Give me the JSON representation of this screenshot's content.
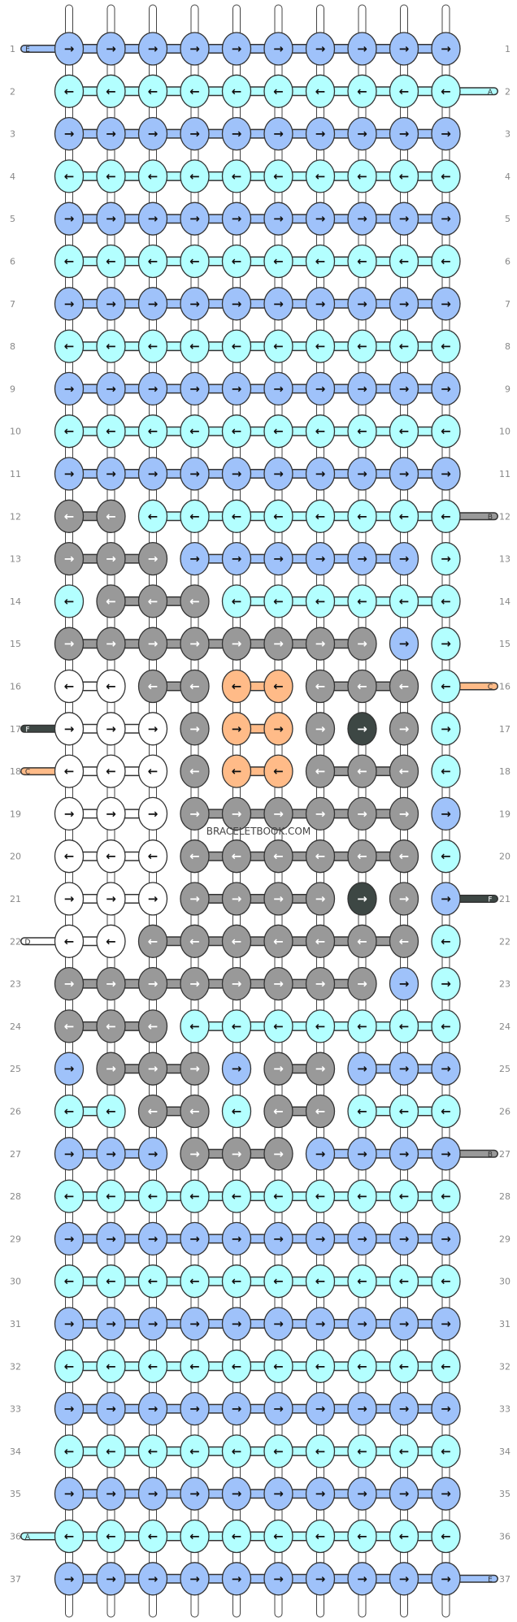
{
  "watermark": "BRACELETBOOK.COM",
  "colors": {
    "A": "#b3ffff",
    "B": "#999999",
    "C": "#ffbb88",
    "D": "#ffffff",
    "E": "#9fc2fa",
    "F": "#3d4744"
  },
  "start_strings": [
    {
      "row": 1,
      "side": "left",
      "letter": "E",
      "color": "E"
    },
    {
      "row": 2,
      "side": "right",
      "letter": "A",
      "color": "A"
    },
    {
      "row": 12,
      "side": "right",
      "letter": "B",
      "color": "B"
    },
    {
      "row": 16,
      "side": "right",
      "letter": "C",
      "color": "C"
    },
    {
      "row": 17,
      "side": "left",
      "letter": "F",
      "color": "F"
    },
    {
      "row": 18,
      "side": "left",
      "letter": "C",
      "color": "C"
    },
    {
      "row": 21,
      "side": "right",
      "letter": "F",
      "color": "F"
    },
    {
      "row": 22,
      "side": "left",
      "letter": "D",
      "color": "D"
    },
    {
      "row": 27,
      "side": "right",
      "letter": "B",
      "color": "B"
    },
    {
      "row": 36,
      "side": "left",
      "letter": "A",
      "color": "A"
    },
    {
      "row": 37,
      "side": "right",
      "letter": "E",
      "color": "E"
    }
  ],
  "knot_grid": {
    "arrow_right": "→",
    "arrow_left": "←",
    "rows": [
      [
        "E",
        "E",
        "E",
        "E",
        "E",
        "E",
        "E",
        "E",
        "E",
        "E"
      ],
      [
        "A",
        "A",
        "A",
        "A",
        "A",
        "A",
        "A",
        "A",
        "A",
        "A"
      ],
      [
        "E",
        "E",
        "E",
        "E",
        "E",
        "E",
        "E",
        "E",
        "E",
        "E"
      ],
      [
        "A",
        "A",
        "A",
        "A",
        "A",
        "A",
        "A",
        "A",
        "A",
        "A"
      ],
      [
        "E",
        "E",
        "E",
        "E",
        "E",
        "E",
        "E",
        "E",
        "E",
        "E"
      ],
      [
        "A",
        "A",
        "A",
        "A",
        "A",
        "A",
        "A",
        "A",
        "A",
        "A"
      ],
      [
        "E",
        "E",
        "E",
        "E",
        "E",
        "E",
        "E",
        "E",
        "E",
        "E"
      ],
      [
        "A",
        "A",
        "A",
        "A",
        "A",
        "A",
        "A",
        "A",
        "A",
        "A"
      ],
      [
        "E",
        "E",
        "E",
        "E",
        "E",
        "E",
        "E",
        "E",
        "E",
        "E"
      ],
      [
        "A",
        "A",
        "A",
        "A",
        "A",
        "A",
        "A",
        "A",
        "A",
        "A"
      ],
      [
        "E",
        "E",
        "E",
        "E",
        "E",
        "E",
        "E",
        "E",
        "E",
        "E"
      ],
      [
        "B",
        "B",
        "A",
        "A",
        "A",
        "A",
        "A",
        "A",
        "A",
        "A"
      ],
      [
        "B",
        "B",
        "B",
        "E",
        "E",
        "E",
        "E",
        "E",
        "E",
        "A"
      ],
      [
        "A",
        "B",
        "B",
        "B",
        "A",
        "A",
        "A",
        "A",
        "A",
        "A"
      ],
      [
        "B",
        "B",
        "B",
        "B",
        "B",
        "B",
        "B",
        "B",
        "E",
        "A"
      ],
      [
        "D",
        "D",
        "B",
        "B",
        "C",
        "C",
        "B",
        "B",
        "B",
        "A"
      ],
      [
        "D",
        "D",
        "D",
        "B",
        "C",
        "C",
        "B",
        "F",
        "B",
        "A"
      ],
      [
        "D",
        "D",
        "D",
        "B",
        "C",
        "C",
        "B",
        "B",
        "B",
        "A"
      ],
      [
        "D",
        "D",
        "D",
        "B",
        "B",
        "B",
        "B",
        "B",
        "B",
        "E"
      ],
      [
        "D",
        "D",
        "D",
        "B",
        "B",
        "B",
        "B",
        "B",
        "B",
        "A"
      ],
      [
        "D",
        "D",
        "D",
        "B",
        "B",
        "B",
        "B",
        "F",
        "B",
        "E"
      ],
      [
        "D",
        "D",
        "B",
        "B",
        "B",
        "B",
        "B",
        "B",
        "B",
        "A"
      ],
      [
        "B",
        "B",
        "B",
        "B",
        "B",
        "B",
        "B",
        "B",
        "E",
        "A"
      ],
      [
        "B",
        "B",
        "B",
        "A",
        "A",
        "A",
        "A",
        "A",
        "A",
        "A"
      ],
      [
        "E",
        "B",
        "B",
        "B",
        "E",
        "B",
        "B",
        "E",
        "E",
        "E"
      ],
      [
        "A",
        "A",
        "B",
        "B",
        "A",
        "B",
        "B",
        "A",
        "A",
        "A"
      ],
      [
        "E",
        "E",
        "E",
        "B",
        "B",
        "B",
        "E",
        "E",
        "E",
        "E"
      ],
      [
        "A",
        "A",
        "A",
        "A",
        "A",
        "A",
        "A",
        "A",
        "A",
        "A"
      ],
      [
        "E",
        "E",
        "E",
        "E",
        "E",
        "E",
        "E",
        "E",
        "E",
        "E"
      ],
      [
        "A",
        "A",
        "A",
        "A",
        "A",
        "A",
        "A",
        "A",
        "A",
        "A"
      ],
      [
        "E",
        "E",
        "E",
        "E",
        "E",
        "E",
        "E",
        "E",
        "E",
        "E"
      ],
      [
        "A",
        "A",
        "A",
        "A",
        "A",
        "A",
        "A",
        "A",
        "A",
        "A"
      ],
      [
        "E",
        "E",
        "E",
        "E",
        "E",
        "E",
        "E",
        "E",
        "E",
        "E"
      ],
      [
        "A",
        "A",
        "A",
        "A",
        "A",
        "A",
        "A",
        "A",
        "A",
        "A"
      ],
      [
        "E",
        "E",
        "E",
        "E",
        "E",
        "E",
        "E",
        "E",
        "E",
        "E"
      ],
      [
        "A",
        "A",
        "A",
        "A",
        "A",
        "A",
        "A",
        "A",
        "A",
        "A"
      ],
      [
        "E",
        "E",
        "E",
        "E",
        "E",
        "E",
        "E",
        "E",
        "E",
        "E"
      ]
    ],
    "directions": [
      "RRRRRRRRRR",
      "LLLLLLLLLL",
      "RRRRRRRRRR",
      "LLLLLLLLLL",
      "RRRRRRRRRR",
      "LLLLLLLLLL",
      "RRRRRRRRRR",
      "LLLLLLLLLL",
      "RRRRRRRRRR",
      "LLLLLLLLLL",
      "RRRRRRRRRR",
      "LLLLLLLLLL",
      "RRRRRRRRRR",
      "LLLLLLLLLL",
      "RRRRRRRRRR",
      "LLLLLLLLLL",
      "RRRRRRRRRR",
      "LLLLLLLLLL",
      "RRRRRRRRRR",
      "LLLLLLLLLL",
      "RRRRRRRRRR",
      "LLLLLLLLLL",
      "RRRRRRRRRR",
      "LLLLLLLLLL",
      "RRRRRRRRRR",
      "LLLLLLLLLL",
      "RRRRRRRRRR",
      "LLLLLLLLLL",
      "RRRRRRRRRR",
      "LLLLLLLLLL",
      "RRRRRRRRRR",
      "LLLLLLLLLL",
      "RRRRRRRRRR",
      "LLLLLLLLLL",
      "RRRRRRRRRR",
      "LLLLLLLLLL",
      "RRRRRRRRRR"
    ]
  }
}
